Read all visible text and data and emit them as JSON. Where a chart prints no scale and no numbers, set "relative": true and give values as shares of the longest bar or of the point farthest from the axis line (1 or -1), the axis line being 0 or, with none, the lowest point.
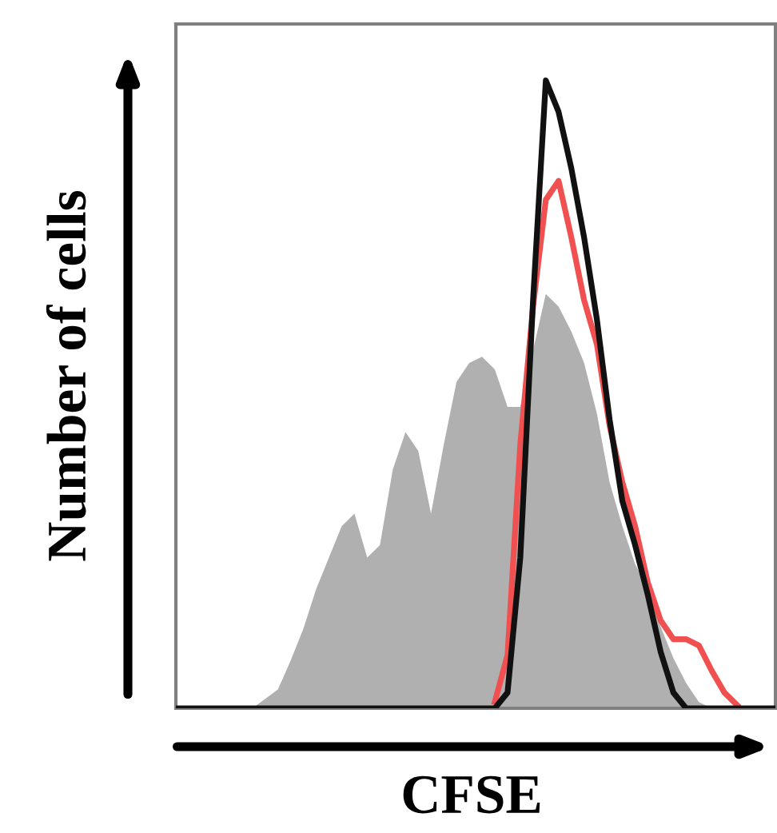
{
  "chart_data": {
    "type": "line",
    "relative": true,
    "xlabel": "CFSE",
    "ylabel": "Number of cells",
    "categories": [
      null,
      null,
      null,
      null,
      null,
      null,
      null,
      null,
      null,
      null,
      null,
      null,
      null,
      null,
      null,
      null,
      null,
      null,
      null,
      null,
      null,
      null,
      null,
      null,
      null,
      null,
      null,
      null,
      null,
      null,
      null,
      null,
      null,
      null,
      null,
      null,
      null,
      null,
      null,
      null,
      null,
      null,
      null,
      null,
      null,
      null,
      null,
      null
    ],
    "series": [
      {
        "type": "area",
        "color": "#b0b0b0",
        "values": [
          0,
          0,
          0,
          0,
          0,
          0,
          0,
          0.015,
          0.03,
          0.076,
          0.127,
          0.19,
          0.24,
          0.29,
          0.31,
          0.24,
          0.26,
          0.38,
          0.44,
          0.41,
          0.31,
          0.42,
          0.52,
          0.55,
          0.56,
          0.54,
          0.48,
          0.48,
          0.57,
          0.66,
          0.64,
          0.6,
          0.55,
          0.47,
          0.36,
          0.29,
          0.23,
          0.19,
          0.13,
          0.08,
          0.04,
          0.01,
          0,
          0,
          0,
          0,
          0,
          0
        ]
      },
      {
        "color": "#f05050",
        "values": [
          null,
          null,
          null,
          null,
          null,
          null,
          null,
          null,
          null,
          null,
          null,
          null,
          null,
          null,
          null,
          null,
          null,
          null,
          null,
          null,
          null,
          null,
          null,
          null,
          null,
          0.01,
          0.085,
          0.42,
          0.64,
          0.81,
          0.84,
          0.75,
          0.65,
          0.58,
          0.45,
          0.36,
          0.29,
          0.2,
          0.14,
          0.11,
          0.11,
          0.1,
          0.06,
          0.025,
          0.005,
          null,
          null,
          null
        ]
      },
      {
        "color": "#111111",
        "values": [
          0,
          0,
          0,
          0,
          0,
          0,
          0,
          0,
          0,
          0,
          0,
          0,
          0,
          0,
          0,
          0,
          0,
          0,
          0,
          0,
          0,
          0,
          0,
          0,
          0,
          0,
          0.025,
          0.24,
          0.65,
          1.0,
          0.95,
          0.86,
          0.75,
          0.62,
          0.46,
          0.33,
          0.26,
          0.18,
          0.09,
          0.025,
          0,
          0,
          0,
          0,
          0,
          0,
          0,
          0
        ]
      }
    ]
  }
}
